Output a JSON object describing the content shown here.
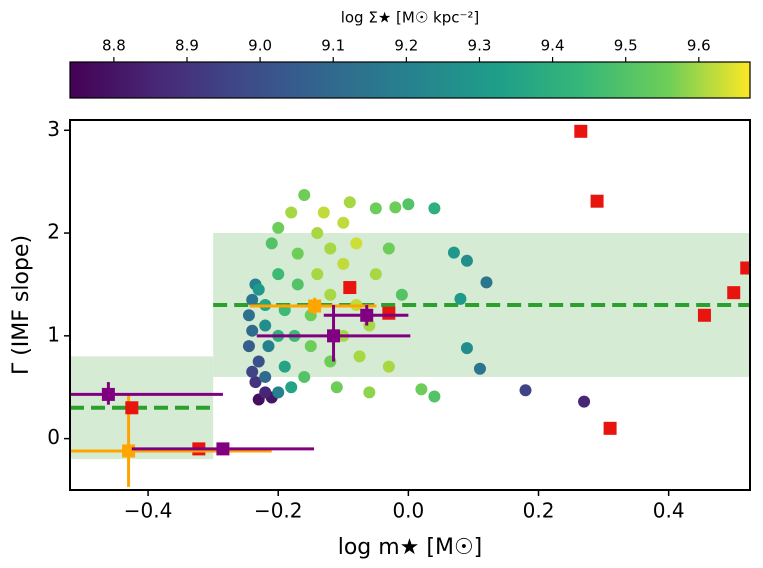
{
  "chart_data": {
    "type": "scatter",
    "xlabel": "log m★ [M☉]",
    "ylabel": "Γ (IMF slope)",
    "colorbar_label": "log Σ★ [M☉ kpc⁻²]",
    "colormap": "viridis",
    "xlim": [
      -0.52,
      0.525
    ],
    "ylim": [
      -0.5,
      3.1
    ],
    "xticks": [
      {
        "value": -0.4,
        "label": "−0.4"
      },
      {
        "value": -0.2,
        "label": "−0.2"
      },
      {
        "value": 0.0,
        "label": "0.0"
      },
      0.2,
      0.4
    ],
    "yticks": [
      0,
      1,
      2,
      3
    ],
    "clim": [
      8.74,
      9.67
    ],
    "cticks": [
      8.8,
      8.9,
      {
        "value": 9.0,
        "label": "9.0"
      },
      9.1,
      9.2,
      9.3,
      9.4,
      9.5,
      9.6
    ],
    "regions": [
      {
        "x": [
          -0.52,
          -0.3
        ],
        "y": [
          -0.2,
          0.8
        ],
        "level": 0.3,
        "color": "#d5ebd3",
        "line_color": "#2ca02c"
      },
      {
        "x": [
          -0.3,
          0.525
        ],
        "y": [
          0.6,
          2.0
        ],
        "level": 1.3,
        "color": "#d5ebd3",
        "line_color": "#2ca02c"
      }
    ],
    "scatter": {
      "x": [
        -0.23,
        -0.21,
        -0.22,
        -0.235,
        -0.24,
        -0.23,
        -0.245,
        -0.24,
        -0.245,
        -0.24,
        -0.235,
        -0.23,
        -0.22,
        -0.22,
        -0.215,
        -0.22,
        -0.2,
        -0.19,
        -0.2,
        -0.19,
        -0.2,
        -0.21,
        -0.2,
        -0.18,
        -0.16,
        -0.17,
        -0.17,
        -0.175,
        -0.18,
        -0.16,
        -0.15,
        -0.15,
        -0.14,
        -0.14,
        -0.13,
        -0.12,
        -0.12,
        -0.12,
        -0.11,
        -0.1,
        -0.1,
        -0.1,
        -0.09,
        -0.08,
        -0.08,
        -0.075,
        -0.06,
        -0.06,
        -0.05,
        -0.05,
        -0.03,
        -0.03,
        -0.02,
        -0.01,
        0.0,
        0.02,
        0.04,
        0.04,
        0.07,
        0.09,
        0.12,
        0.08,
        0.09,
        0.11,
        0.18,
        0.27
      ],
      "y": [
        0.38,
        0.4,
        0.45,
        0.55,
        0.65,
        0.75,
        0.9,
        1.05,
        1.2,
        1.35,
        1.5,
        1.45,
        1.3,
        1.1,
        0.9,
        0.6,
        0.45,
        0.7,
        1.0,
        1.25,
        1.6,
        1.9,
        2.05,
        2.2,
        2.37,
        1.8,
        1.5,
        1.0,
        0.5,
        0.6,
        0.9,
        1.2,
        1.6,
        2.0,
        2.2,
        1.85,
        1.4,
        0.75,
        0.5,
        1.0,
        1.7,
        2.1,
        2.3,
        1.9,
        1.3,
        0.8,
        0.45,
        1.1,
        1.6,
        2.24,
        1.85,
        0.7,
        2.25,
        1.4,
        2.28,
        0.48,
        0.41,
        2.24,
        1.81,
        1.73,
        1.52,
        1.36,
        0.88,
        0.68,
        0.47,
        0.36
      ],
      "c": [
        8.78,
        8.8,
        8.85,
        8.9,
        8.95,
        9.0,
        9.05,
        9.1,
        9.12,
        9.15,
        9.2,
        9.3,
        9.35,
        9.25,
        9.2,
        9.1,
        9.2,
        9.35,
        9.4,
        9.45,
        9.45,
        9.5,
        9.55,
        9.6,
        9.55,
        9.55,
        9.5,
        9.45,
        9.35,
        9.5,
        9.55,
        9.55,
        9.6,
        9.6,
        9.62,
        9.6,
        9.6,
        9.55,
        9.55,
        9.6,
        9.62,
        9.62,
        9.6,
        9.63,
        9.62,
        9.6,
        9.58,
        9.6,
        9.6,
        9.55,
        9.55,
        9.6,
        9.55,
        9.5,
        9.5,
        9.55,
        9.5,
        9.4,
        9.3,
        9.25,
        9.15,
        9.3,
        9.25,
        9.15,
        8.95,
        8.85
      ]
    },
    "squares": [
      {
        "x": 0.265,
        "y": 2.99,
        "color": "#e8150f"
      },
      {
        "x": 0.29,
        "y": 2.31,
        "color": "#e8150f"
      },
      {
        "x": 0.52,
        "y": 1.66,
        "color": "#e8150f"
      },
      {
        "x": 0.5,
        "y": 1.42,
        "color": "#e8150f"
      },
      {
        "x": 0.455,
        "y": 1.2,
        "color": "#e8150f"
      },
      {
        "x": 0.31,
        "y": 0.1,
        "color": "#e8150f"
      },
      {
        "x": -0.09,
        "y": 1.47,
        "color": "#e8150f"
      },
      {
        "x": -0.03,
        "y": 1.22,
        "color": "#e8150f"
      },
      {
        "x": -0.322,
        "y": -0.1,
        "color": "#e8150f"
      },
      {
        "x": -0.43,
        "y": -0.12,
        "color": "#ffa500",
        "xerr": [
          0.09,
          0.22
        ],
        "yerr": [
          0.35,
          0.55
        ]
      },
      {
        "x": -0.425,
        "y": 0.3,
        "color": "#e8150f"
      },
      {
        "x": -0.144,
        "y": 1.29,
        "color": "#ffa500",
        "xerr": [
          0.1,
          0.095
        ],
        "yerr": [
          0.08,
          0.08
        ]
      },
      {
        "x": -0.461,
        "y": 0.43,
        "color": "#800080",
        "xerr": [
          0.06,
          0.176
        ],
        "yerr": [
          0.1,
          0.12
        ]
      },
      {
        "x": -0.285,
        "y": -0.1,
        "color": "#800080",
        "xerr": [
          0.14,
          0.14
        ],
        "yerr": [
          0.05,
          0.05
        ]
      },
      {
        "x": -0.115,
        "y": 1.0,
        "color": "#800080",
        "xerr": [
          0.118,
          0.118
        ],
        "yerr": [
          0.25,
          0.3
        ]
      },
      {
        "x": -0.064,
        "y": 1.2,
        "color": "#800080",
        "xerr": [
          0.066,
          0.064
        ],
        "yerr": [
          0.1,
          0.1
        ]
      }
    ]
  }
}
